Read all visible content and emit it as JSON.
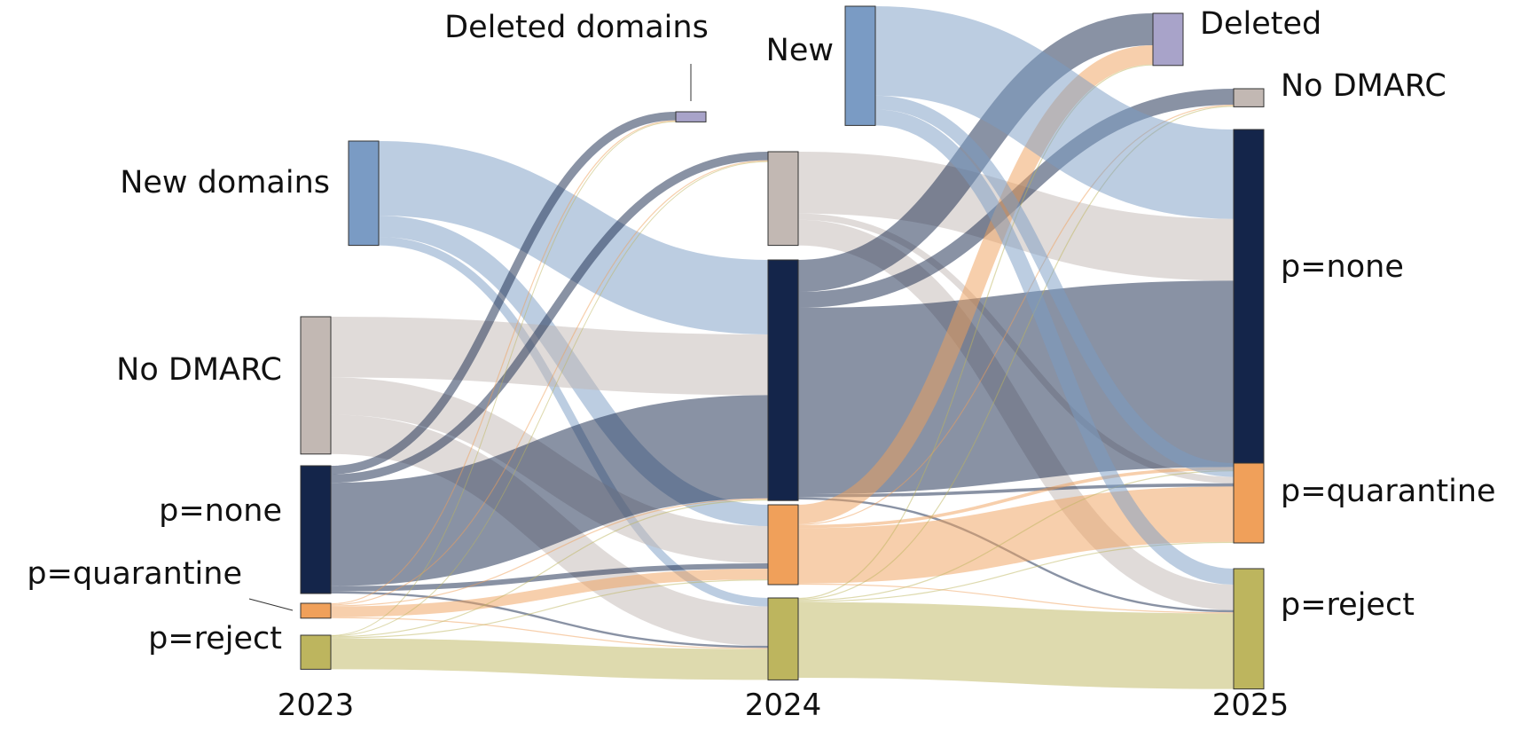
{
  "chart_data": {
    "type": "sankey",
    "stages": [
      "2023",
      "2024",
      "2025"
    ],
    "nodes": [
      {
        "id": "n23_new",
        "label": "New domains",
        "stage": "2023",
        "color": "#7a9bc4"
      },
      {
        "id": "n23_nodmarc",
        "label": "No DMARC",
        "stage": "2023",
        "color": "#c2b8b3"
      },
      {
        "id": "n23_none",
        "label": "p=none",
        "stage": "2023",
        "color": "#14254a"
      },
      {
        "id": "n23_quar",
        "label": "p=quarantine",
        "stage": "2023",
        "color": "#f0a05a"
      },
      {
        "id": "n23_rej",
        "label": "p=reject",
        "stage": "2023",
        "color": "#bdb55e"
      },
      {
        "id": "n24_del",
        "label": "Deleted domains",
        "stage": "2024",
        "color": "#a8a3c9"
      },
      {
        "id": "n24_nodmarc",
        "label": "",
        "stage": "2024",
        "color": "#c2b8b3"
      },
      {
        "id": "n24_none",
        "label": "",
        "stage": "2024",
        "color": "#14254a"
      },
      {
        "id": "n24_quar",
        "label": "",
        "stage": "2024",
        "color": "#f0a05a"
      },
      {
        "id": "n24_rej",
        "label": "",
        "stage": "2024",
        "color": "#bdb55e"
      },
      {
        "id": "n24_new",
        "label": "New",
        "stage": "2024",
        "color": "#7a9bc4"
      },
      {
        "id": "n25_del",
        "label": "Deleted",
        "stage": "2025",
        "color": "#a8a3c9"
      },
      {
        "id": "n25_nodmarc",
        "label": "No DMARC",
        "stage": "2025",
        "color": "#c2b8b3"
      },
      {
        "id": "n25_none",
        "label": "p=none",
        "stage": "2025",
        "color": "#14254a"
      },
      {
        "id": "n25_quar",
        "label": "p=quarantine",
        "stage": "2025",
        "color": "#f0a05a"
      },
      {
        "id": "n25_rej",
        "label": "p=reject",
        "stage": "2025",
        "color": "#bdb55e"
      }
    ],
    "links": [
      {
        "source": "n23_new",
        "target": "n24_none",
        "value": 70
      },
      {
        "source": "n23_new",
        "target": "n24_quar",
        "value": 20
      },
      {
        "source": "n23_new",
        "target": "n24_rej",
        "value": 8
      },
      {
        "source": "n23_nodmarc",
        "target": "n24_none",
        "value": 57
      },
      {
        "source": "n23_nodmarc",
        "target": "n24_quar",
        "value": 35
      },
      {
        "source": "n23_nodmarc",
        "target": "n24_rej",
        "value": 37
      },
      {
        "source": "n23_none",
        "target": "n24_del",
        "value": 8
      },
      {
        "source": "n23_none",
        "target": "n24_nodmarc",
        "value": 8
      },
      {
        "source": "n23_none",
        "target": "n24_none",
        "value": 97
      },
      {
        "source": "n23_none",
        "target": "n24_quar",
        "value": 5
      },
      {
        "source": "n23_none",
        "target": "n24_rej",
        "value": 2
      },
      {
        "source": "n23_quar",
        "target": "n24_del",
        "value": 1
      },
      {
        "source": "n23_quar",
        "target": "n24_nodmarc",
        "value": 1
      },
      {
        "source": "n23_quar",
        "target": "n24_none",
        "value": 1
      },
      {
        "source": "n23_quar",
        "target": "n24_quar",
        "value": 10
      },
      {
        "source": "n23_quar",
        "target": "n24_rej",
        "value": 1
      },
      {
        "source": "n23_rej",
        "target": "n24_del",
        "value": 0.5
      },
      {
        "source": "n23_rej",
        "target": "n24_nodmarc",
        "value": 0.5
      },
      {
        "source": "n23_rej",
        "target": "n24_none",
        "value": 1
      },
      {
        "source": "n23_rej",
        "target": "n24_quar",
        "value": 1
      },
      {
        "source": "n23_rej",
        "target": "n24_rej",
        "value": 29
      },
      {
        "source": "n24_nodmarc",
        "target": "n25_none",
        "value": 58
      },
      {
        "source": "n24_nodmarc",
        "target": "n25_quar",
        "value": 6
      },
      {
        "source": "n24_nodmarc",
        "target": "n25_rej",
        "value": 24
      },
      {
        "source": "n24_none",
        "target": "n25_del",
        "value": 30
      },
      {
        "source": "n24_none",
        "target": "n25_nodmarc",
        "value": 15
      },
      {
        "source": "n24_none",
        "target": "n25_none",
        "value": 175
      },
      {
        "source": "n24_none",
        "target": "n25_quar",
        "value": 3
      },
      {
        "source": "n24_none",
        "target": "n25_rej",
        "value": 2
      },
      {
        "source": "n24_quar",
        "target": "n25_del",
        "value": 18
      },
      {
        "source": "n24_quar",
        "target": "n25_nodmarc",
        "value": 1
      },
      {
        "source": "n24_quar",
        "target": "n25_none",
        "value": 3
      },
      {
        "source": "n24_quar",
        "target": "n25_quar",
        "value": 52
      },
      {
        "source": "n24_quar",
        "target": "n25_rej",
        "value": 1
      },
      {
        "source": "n24_rej",
        "target": "n25_del",
        "value": 1
      },
      {
        "source": "n24_rej",
        "target": "n25_nodmarc",
        "value": 1
      },
      {
        "source": "n24_rej",
        "target": "n25_none",
        "value": 1
      },
      {
        "source": "n24_rej",
        "target": "n25_quar",
        "value": 1
      },
      {
        "source": "n24_rej",
        "target": "n25_rej",
        "value": 71
      },
      {
        "source": "n24_new",
        "target": "n25_none",
        "value": 84
      },
      {
        "source": "n24_new",
        "target": "n25_quar",
        "value": 13
      },
      {
        "source": "n24_new",
        "target": "n25_rej",
        "value": 15
      }
    ]
  }
}
